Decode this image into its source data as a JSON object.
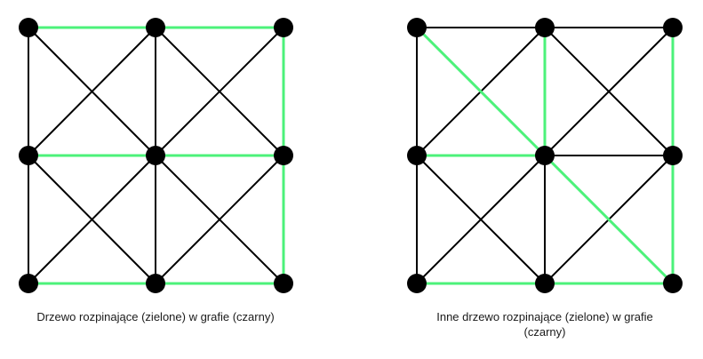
{
  "colors": {
    "graph_edge": "#000000",
    "tree_edge": "#4cf27a",
    "node": "#000000",
    "caption_text": "#1a1a1a"
  },
  "diagrams": [
    {
      "id": "left",
      "caption": "Drzewo rozpinające (zielone) w grafie (czarny)",
      "nodes": [
        {
          "id": "a1"
        },
        {
          "id": "a2"
        },
        {
          "id": "a3"
        },
        {
          "id": "b1"
        },
        {
          "id": "b2"
        },
        {
          "id": "b3"
        },
        {
          "id": "c1"
        },
        {
          "id": "c2"
        },
        {
          "id": "c3"
        }
      ],
      "edges": [
        {
          "from": "a1",
          "to": "a2",
          "tree": true
        },
        {
          "from": "a2",
          "to": "a3",
          "tree": true
        },
        {
          "from": "a3",
          "to": "b3",
          "tree": true
        },
        {
          "from": "b3",
          "to": "c3",
          "tree": true
        },
        {
          "from": "b1",
          "to": "b2",
          "tree": true
        },
        {
          "from": "b2",
          "to": "b3",
          "tree": true
        },
        {
          "from": "c1",
          "to": "c2",
          "tree": true
        },
        {
          "from": "c2",
          "to": "c3",
          "tree": true
        },
        {
          "from": "a1",
          "to": "b1",
          "tree": false
        },
        {
          "from": "b1",
          "to": "c1",
          "tree": false
        },
        {
          "from": "a2",
          "to": "b2",
          "tree": false
        },
        {
          "from": "b2",
          "to": "c2",
          "tree": false
        },
        {
          "from": "a1",
          "to": "b2",
          "tree": false
        },
        {
          "from": "b2",
          "to": "c3",
          "tree": false
        },
        {
          "from": "a3",
          "to": "b2",
          "tree": false
        },
        {
          "from": "b2",
          "to": "c1",
          "tree": false
        },
        {
          "from": "a2",
          "to": "b1",
          "tree": false
        },
        {
          "from": "b1",
          "to": "c2",
          "tree": false
        },
        {
          "from": "a2",
          "to": "b3",
          "tree": false
        },
        {
          "from": "b3",
          "to": "c2",
          "tree": false
        }
      ]
    },
    {
      "id": "right",
      "caption": "Inne drzewo rozpinające (zielone) w grafie (czarny)",
      "nodes": [
        {
          "id": "a1"
        },
        {
          "id": "a2"
        },
        {
          "id": "a3"
        },
        {
          "id": "b1"
        },
        {
          "id": "b2"
        },
        {
          "id": "b3"
        },
        {
          "id": "c1"
        },
        {
          "id": "c2"
        },
        {
          "id": "c3"
        }
      ],
      "edges": [
        {
          "from": "a1",
          "to": "b2",
          "tree": true
        },
        {
          "from": "a2",
          "to": "b2",
          "tree": true
        },
        {
          "from": "a3",
          "to": "b3",
          "tree": true
        },
        {
          "from": "b3",
          "to": "c3",
          "tree": true
        },
        {
          "from": "b1",
          "to": "b2",
          "tree": true
        },
        {
          "from": "b2",
          "to": "c3",
          "tree": true
        },
        {
          "from": "c1",
          "to": "c2",
          "tree": true
        },
        {
          "from": "c2",
          "to": "c3",
          "tree": true
        },
        {
          "from": "a1",
          "to": "a2",
          "tree": false
        },
        {
          "from": "a2",
          "to": "a3",
          "tree": false
        },
        {
          "from": "a1",
          "to": "b1",
          "tree": false
        },
        {
          "from": "b1",
          "to": "c1",
          "tree": false
        },
        {
          "from": "b2",
          "to": "c2",
          "tree": false
        },
        {
          "from": "b2",
          "to": "b3",
          "tree": false
        },
        {
          "from": "a2",
          "to": "b1",
          "tree": false
        },
        {
          "from": "a2",
          "to": "b3",
          "tree": false
        },
        {
          "from": "a3",
          "to": "b2",
          "tree": false
        },
        {
          "from": "b1",
          "to": "c2",
          "tree": false
        },
        {
          "from": "b2",
          "to": "c1",
          "tree": false
        },
        {
          "from": "b3",
          "to": "c2",
          "tree": false
        }
      ]
    }
  ]
}
